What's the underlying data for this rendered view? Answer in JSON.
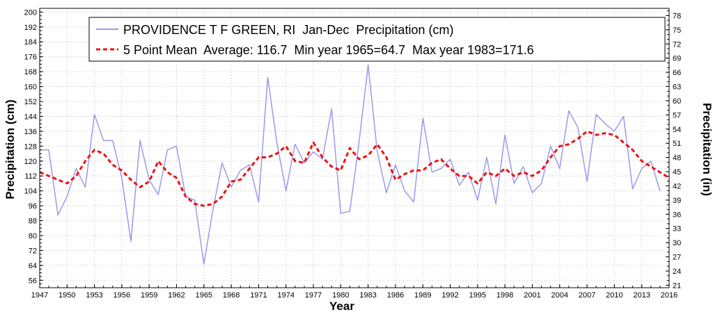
{
  "chart_data": {
    "type": "line",
    "title": "",
    "xlabel": "Year",
    "ylabel": "Precipitation (cm)",
    "ylabel_right": "Precipitation (in)",
    "xlim": [
      1947,
      2016
    ],
    "ylim": [
      52,
      202
    ],
    "ylim_right_in": [
      20.47,
      79.53
    ],
    "x_ticks": [
      1947,
      1950,
      1953,
      1956,
      1959,
      1962,
      1965,
      1968,
      1971,
      1974,
      1977,
      1980,
      1983,
      1986,
      1989,
      1992,
      1995,
      1998,
      2001,
      2004,
      2007,
      2010,
      2013,
      2016
    ],
    "y_ticks": [
      56,
      64,
      72,
      80,
      88,
      96,
      104,
      112,
      120,
      128,
      136,
      144,
      152,
      160,
      168,
      176,
      184,
      192,
      200
    ],
    "y_ticks_right": [
      21,
      24,
      27,
      30,
      33,
      36,
      39,
      42,
      45,
      48,
      51,
      54,
      57,
      60,
      63,
      66,
      69,
      72,
      75,
      78
    ],
    "grid": true,
    "legend_position": "top",
    "series": [
      {
        "name": "PROVIDENCE T F GREEN, RI  Jan-Dec  Precipitation (cm)",
        "color": "#9999ee",
        "style": "solid",
        "x": [
          1947,
          1948,
          1949,
          1950,
          1951,
          1952,
          1953,
          1954,
          1955,
          1956,
          1957,
          1958,
          1959,
          1960,
          1961,
          1962,
          1963,
          1964,
          1965,
          1966,
          1967,
          1968,
          1969,
          1970,
          1971,
          1972,
          1973,
          1974,
          1975,
          1976,
          1977,
          1978,
          1979,
          1980,
          1981,
          1982,
          1983,
          1984,
          1985,
          1986,
          1987,
          1988,
          1989,
          1990,
          1991,
          1992,
          1993,
          1994,
          1995,
          1996,
          1997,
          1998,
          1999,
          2000,
          2001,
          2002,
          2003,
          2004,
          2005,
          2006,
          2007,
          2008,
          2009,
          2010,
          2011,
          2012,
          2013,
          2014,
          2015
        ],
        "y": [
          126,
          126,
          91,
          101,
          116,
          106,
          145,
          131,
          131,
          111,
          77,
          131,
          110,
          102,
          126,
          128,
          101,
          99,
          64.7,
          94,
          119,
          106,
          115,
          118,
          98,
          165,
          130,
          104,
          129,
          119,
          125,
          121,
          148,
          92,
          93,
          130,
          171.6,
          125,
          103,
          118,
          104,
          98,
          143,
          114,
          116,
          121,
          107,
          114,
          99,
          122,
          97,
          134,
          108,
          117,
          103,
          108,
          128,
          116,
          147,
          138,
          109,
          145,
          140,
          136,
          144,
          105,
          116,
          120,
          104
        ]
      },
      {
        "name": "5 Point Mean  Average: 116.7  Min year 1965=64.7  Max year 1983=171.6",
        "color": "#ee1111",
        "style": "dashed",
        "x": [
          1947,
          1948,
          1949,
          1950,
          1951,
          1952,
          1953,
          1954,
          1955,
          1956,
          1957,
          1958,
          1959,
          1960,
          1961,
          1962,
          1963,
          1964,
          1965,
          1966,
          1967,
          1968,
          1969,
          1970,
          1971,
          1972,
          1973,
          1974,
          1975,
          1976,
          1977,
          1978,
          1979,
          1980,
          1981,
          1982,
          1983,
          1984,
          1985,
          1986,
          1987,
          1988,
          1989,
          1990,
          1991,
          1992,
          1993,
          1994,
          1995,
          1996,
          1997,
          1998,
          1999,
          2000,
          2001,
          2002,
          2003,
          2004,
          2005,
          2006,
          2007,
          2008,
          2009,
          2010,
          2011,
          2012,
          2013,
          2014,
          2015,
          2016
        ],
        "y": [
          114,
          112,
          110,
          108,
          112,
          120,
          126,
          124,
          118,
          115,
          110,
          106,
          109,
          120,
          114,
          111,
          101,
          97,
          96,
          97,
          101,
          109,
          110,
          116,
          122,
          122,
          124,
          128,
          120,
          119,
          130,
          122,
          117,
          115,
          127,
          121,
          123,
          129,
          122,
          110,
          113,
          115,
          115,
          119,
          121,
          116,
          112,
          112,
          108,
          114,
          112,
          116,
          112,
          114,
          112,
          115,
          122,
          128,
          129,
          132,
          136,
          134,
          135,
          134,
          130,
          126,
          120,
          117,
          114,
          111
        ]
      }
    ]
  }
}
